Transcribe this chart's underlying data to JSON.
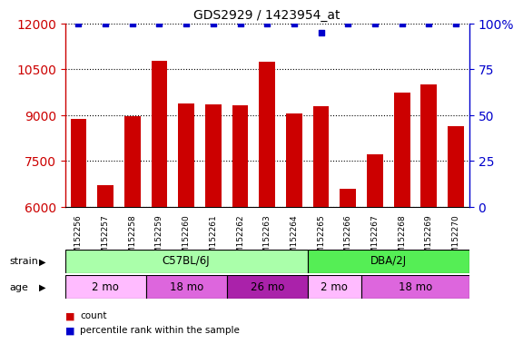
{
  "title": "GDS2929 / 1423954_at",
  "samples": [
    "GSM152256",
    "GSM152257",
    "GSM152258",
    "GSM152259",
    "GSM152260",
    "GSM152261",
    "GSM152262",
    "GSM152263",
    "GSM152264",
    "GSM152265",
    "GSM152266",
    "GSM152267",
    "GSM152268",
    "GSM152269",
    "GSM152270"
  ],
  "counts": [
    8870,
    6700,
    8970,
    10780,
    9380,
    9350,
    9330,
    10760,
    9050,
    9280,
    6580,
    7720,
    9750,
    10020,
    8630
  ],
  "percentile_ranks": [
    100,
    100,
    100,
    100,
    100,
    100,
    100,
    100,
    100,
    95,
    100,
    100,
    100,
    100,
    100
  ],
  "bar_color": "#cc0000",
  "dot_color": "#0000cc",
  "ylim_left": [
    6000,
    12000
  ],
  "ylim_right": [
    0,
    100
  ],
  "yticks_left": [
    6000,
    7500,
    9000,
    10500,
    12000
  ],
  "yticks_right": [
    0,
    25,
    50,
    75,
    100
  ],
  "strain_groups": [
    {
      "label": "C57BL/6J",
      "start": 0,
      "end": 9,
      "color": "#aaffaa"
    },
    {
      "label": "DBA/2J",
      "start": 9,
      "end": 15,
      "color": "#55ee55"
    }
  ],
  "age_groups": [
    {
      "label": "2 mo",
      "start": 0,
      "end": 3,
      "color": "#ffbbff"
    },
    {
      "label": "18 mo",
      "start": 3,
      "end": 6,
      "color": "#ee77ee"
    },
    {
      "label": "26 mo",
      "start": 6,
      "end": 9,
      "color": "#cc44cc"
    },
    {
      "label": "2 mo",
      "start": 9,
      "end": 11,
      "color": "#ffbbff"
    },
    {
      "label": "18 mo",
      "start": 11,
      "end": 15,
      "color": "#ee77ee"
    }
  ],
  "strain_label": "strain",
  "age_label": "age",
  "legend_count_label": "count",
  "legend_pct_label": "percentile rank within the sample",
  "tick_label_color_left": "#cc0000",
  "tick_label_color_right": "#0000cc"
}
